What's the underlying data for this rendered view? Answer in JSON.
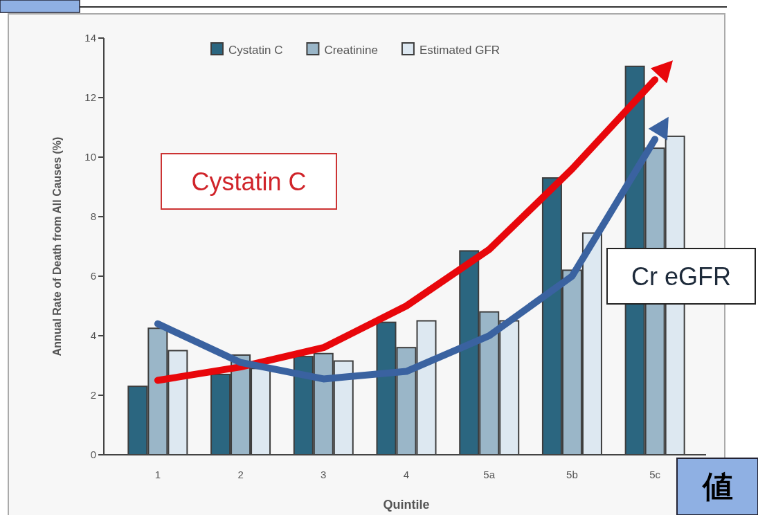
{
  "chart_data": {
    "type": "bar",
    "xlabel": "Quintile",
    "ylabel": "Annual Rate of Death from All Causes (%)",
    "categories": [
      "1",
      "2",
      "3",
      "4",
      "5a",
      "5b",
      "5c"
    ],
    "series": [
      {
        "name": "Cystatin C",
        "color": "#2b6680",
        "values": [
          2.3,
          2.7,
          3.3,
          4.45,
          6.85,
          9.3,
          13.05
        ]
      },
      {
        "name": "Creatinine",
        "color": "#9ab6c8",
        "values": [
          4.25,
          3.35,
          3.4,
          3.6,
          4.8,
          6.2,
          10.3
        ]
      },
      {
        "name": "Estimated GFR",
        "color": "#dde8f1",
        "values": [
          3.5,
          2.9,
          3.15,
          4.5,
          4.5,
          7.45,
          10.7
        ]
      },
      {
        "type": "line",
        "color": "#e8070b",
        "values": [
          2.5,
          2.95,
          3.6,
          5.0,
          6.9,
          9.6,
          12.6
        ]
      },
      {
        "type": "line",
        "color": "#3a62a0",
        "values": [
          4.4,
          3.1,
          2.55,
          2.8,
          4.0,
          6.0,
          10.6
        ]
      }
    ],
    "ylim": [
      0,
      14
    ],
    "yticks": [
      0,
      2,
      4,
      6,
      8,
      10,
      12,
      14
    ],
    "grid": false,
    "legend": "top",
    "annotations": [
      "Cystatin C",
      "Cr  eGFR",
      "値"
    ]
  }
}
